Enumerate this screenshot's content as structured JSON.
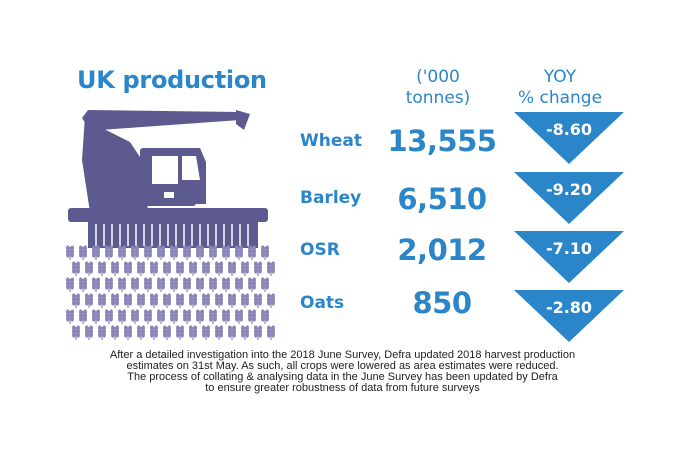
{
  "title": "UK production",
  "columns": {
    "production_header": [
      "('000",
      "tonnes)"
    ],
    "yoy_header": [
      "YOY",
      "% change"
    ]
  },
  "rows": [
    {
      "crop": "Wheat",
      "production": "13,555",
      "yoy": "-8.60"
    },
    {
      "crop": "Barley",
      "production": "6,510",
      "yoy": "-9.20"
    },
    {
      "crop": "OSR",
      "production": "2,012",
      "yoy": "-7.10"
    },
    {
      "crop": "Oats",
      "production": "850",
      "yoy": "-2.80"
    }
  ],
  "footnote": [
    "After a detailed investigation into the 2018 June Survey, Defra updated 2018 harvest production",
    "estimates on 31st May. As such, all crops were lowered as area estimates were reduced.",
    "The process of collating & analysing data in the June Survey has been updated by Defra",
    "to ensure greater robustness of data from future surveys"
  ],
  "colors": {
    "accent": "#2b86c9",
    "triangle": "#2b86c9",
    "harvester": "#5c5a8f",
    "wheat": "#8a86b8"
  },
  "icons": {
    "harvester": "combine-harvester-icon",
    "wheat": "wheat-stalk-icon",
    "down_triangle": "down-triangle-icon"
  }
}
